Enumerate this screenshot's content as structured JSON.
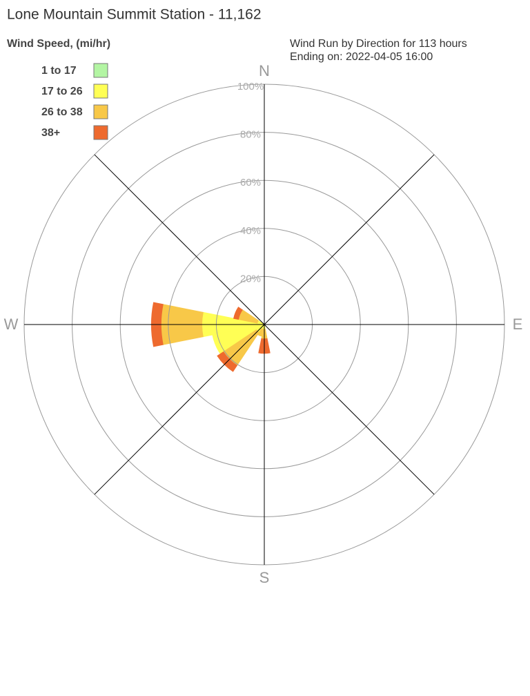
{
  "chart_data": {
    "type": "windrose",
    "title": "Lone Mountain Summit Station - 11,162",
    "legend_title": "Wind Speed, (mi/hr)",
    "subtitle": [
      "Wind Run by Direction for 113 hours",
      "Ending on: 2022-04-05 16:00"
    ],
    "categories": [
      "N",
      null,
      null,
      null,
      "E",
      null,
      null,
      null,
      "S",
      null,
      null,
      null,
      "W",
      null,
      null,
      null
    ],
    "series": [
      {
        "name": "1 to 17",
        "color": "#b3f5a3",
        "values": [
          0,
          0,
          0,
          0,
          0,
          0,
          0,
          0,
          0,
          0,
          0,
          0,
          0,
          0,
          0,
          0
        ]
      },
      {
        "name": "17 to 26",
        "color": "#ffff55",
        "values": [
          0,
          0,
          0,
          0,
          0,
          0,
          0,
          0,
          2,
          2,
          4,
          22,
          26,
          3,
          0,
          0
        ]
      },
      {
        "name": "26 to 38",
        "color": "#f8c848",
        "values": [
          0,
          0,
          0,
          0,
          0,
          0,
          0,
          0,
          4,
          3,
          16.5,
          0,
          17,
          8,
          0,
          0
        ]
      },
      {
        "name": "38+",
        "color": "#ee6a2e",
        "values": [
          0,
          0,
          0,
          0,
          0,
          0,
          0,
          0,
          6,
          0,
          3,
          0,
          4,
          2,
          0,
          0
        ]
      }
    ],
    "rlim": [
      0,
      100
    ],
    "rticks": [
      {
        "value": 20,
        "label": "20%"
      },
      {
        "value": 40,
        "label": "40%"
      },
      {
        "value": 60,
        "label": "60%"
      },
      {
        "value": 80,
        "label": "80%"
      },
      {
        "value": 100,
        "label": "100%"
      }
    ]
  }
}
